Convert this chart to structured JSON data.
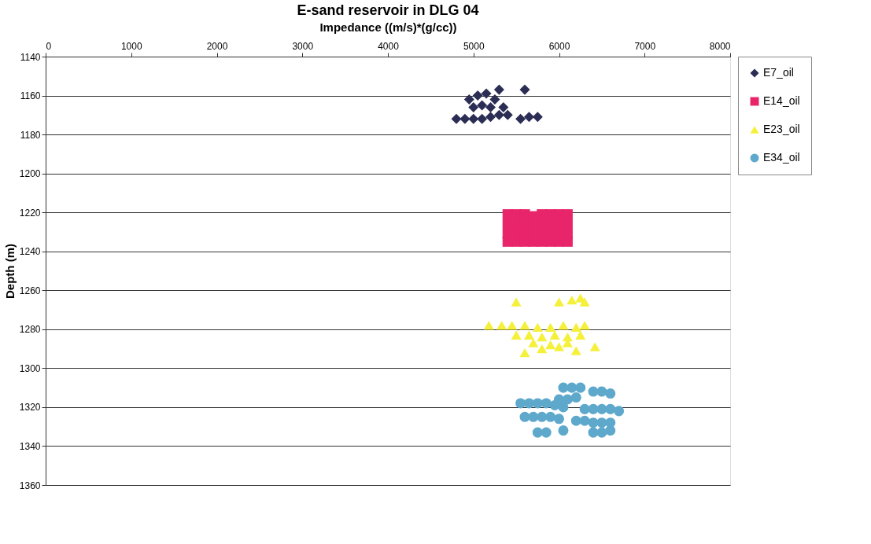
{
  "chart_data": {
    "type": "scatter",
    "title": "E-sand reservoir in DLG 04",
    "xlabel": "Impedance ((m/s)*(g/cc))",
    "ylabel": "Depth (m)",
    "xlim": [
      0,
      8000
    ],
    "xticks": [
      0,
      1000,
      2000,
      3000,
      4000,
      5000,
      6000,
      7000,
      8000
    ],
    "ylim": [
      1360,
      1140
    ],
    "yticks": [
      1140,
      1160,
      1180,
      1200,
      1220,
      1240,
      1260,
      1280,
      1300,
      1320,
      1340,
      1360
    ],
    "grid": "y",
    "legend": "right",
    "series": [
      {
        "name": "E7_oil",
        "color": "#2b2d55",
        "marker": "diamond",
        "x": [
          5300,
          5600,
          4950,
          5050,
          5150,
          5250,
          5000,
          5100,
          5200,
          5350,
          4800,
          4900,
          5000,
          5100,
          5200,
          5300,
          5400,
          5550,
          5650,
          5750
        ],
        "values": [
          1157,
          1157,
          1162,
          1160,
          1159,
          1162,
          1166,
          1165,
          1166,
          1166,
          1172,
          1172,
          1172,
          1172,
          1171,
          1170,
          1170,
          1172,
          1171,
          1171
        ]
      },
      {
        "name": "E14_oil",
        "color": "#e8246a",
        "marker": "square",
        "x": [
          5400,
          5500,
          5600,
          5700,
          5800,
          5900,
          6000,
          6100,
          5400,
          5500,
          5600,
          5700,
          5800,
          5900,
          6000,
          6100,
          5400,
          5500,
          5600,
          5700,
          5800,
          5900,
          6000,
          6100,
          5400,
          5500,
          5600,
          5700,
          5800,
          5900,
          6000,
          6100
        ],
        "values": [
          1221,
          1221,
          1221,
          1222,
          1221,
          1221,
          1221,
          1221,
          1226,
          1226,
          1226,
          1226,
          1226,
          1226,
          1226,
          1226,
          1231,
          1231,
          1231,
          1231,
          1231,
          1231,
          1231,
          1231,
          1235,
          1235,
          1235,
          1235,
          1235,
          1235,
          1235,
          1235
        ]
      },
      {
        "name": "E23_oil",
        "color": "#f5f03a",
        "marker": "triangle",
        "x": [
          5500,
          6000,
          6150,
          6250,
          6300,
          5180,
          5330,
          5450,
          5600,
          5750,
          5900,
          6050,
          6200,
          6300,
          5500,
          5650,
          5800,
          5950,
          6100,
          6250,
          5600,
          5800,
          6000,
          6200,
          6420,
          5700,
          5900,
          6100
        ],
        "values": [
          1266,
          1266,
          1265,
          1264,
          1266,
          1278,
          1278,
          1278,
          1278,
          1279,
          1279,
          1278,
          1279,
          1278,
          1283,
          1283,
          1284,
          1283,
          1284,
          1283,
          1292,
          1290,
          1289,
          1291,
          1289,
          1287,
          1288,
          1287
        ]
      },
      {
        "name": "E34_oil",
        "color": "#5ea8cc",
        "marker": "circle",
        "x": [
          6050,
          6150,
          6250,
          6000,
          6100,
          6200,
          6400,
          6500,
          6600,
          5550,
          5650,
          5750,
          5850,
          5950,
          6050,
          6300,
          6400,
          6500,
          6600,
          6700,
          5600,
          5700,
          5800,
          5900,
          6000,
          6200,
          6300,
          6400,
          6500,
          6600,
          5750,
          5850,
          6050,
          6400,
          6500,
          6600
        ],
        "values": [
          1310,
          1310,
          1310,
          1316,
          1316,
          1315,
          1312,
          1312,
          1313,
          1318,
          1318,
          1318,
          1318,
          1319,
          1320,
          1321,
          1321,
          1321,
          1321,
          1322,
          1325,
          1325,
          1325,
          1325,
          1326,
          1327,
          1327,
          1328,
          1328,
          1328,
          1333,
          1333,
          1332,
          1333,
          1333,
          1332
        ]
      }
    ]
  }
}
